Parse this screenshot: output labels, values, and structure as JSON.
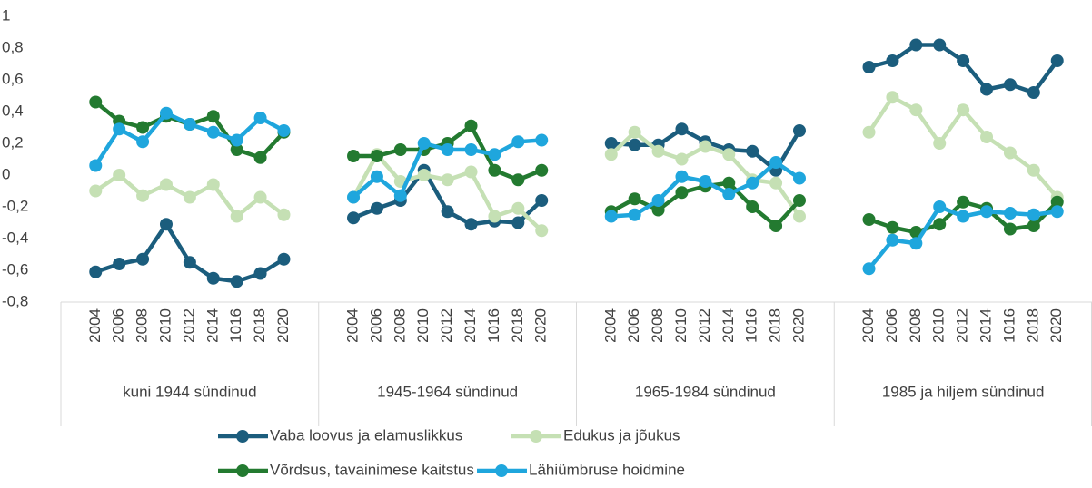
{
  "chart_data": {
    "type": "line",
    "categories": [
      "2004",
      "2006",
      "2008",
      "2010",
      "2012",
      "2014",
      "1016",
      "2018",
      "2020",
      "2004",
      "2006",
      "2008",
      "2010",
      "2012",
      "2014",
      "1016",
      "2018",
      "2020",
      "2004",
      "2006",
      "2008",
      "2010",
      "2012",
      "2014",
      "1016",
      "2018",
      "2020",
      "2004",
      "2006",
      "2008",
      "2010",
      "2012",
      "2014",
      "1016",
      "2018",
      "2020"
    ],
    "groups": [
      "kuni 1944 sündinud",
      "1945-1964 sündinud",
      "1965-1984 sündinud",
      "1985 ja hiljem sündinud"
    ],
    "ylim": [
      -0.8,
      1
    ],
    "yticks": [
      {
        "value": -0.8,
        "label": "-0,8"
      },
      {
        "value": -0.6,
        "label": "-0,6"
      },
      {
        "value": -0.4,
        "label": "-0,4"
      },
      {
        "value": -0.2,
        "label": "-0,2"
      },
      0,
      {
        "value": 0.2,
        "label": "0,2"
      },
      {
        "value": 0.4,
        "label": "0,4"
      },
      {
        "value": 0.6,
        "label": "0,6"
      },
      {
        "value": 0.8,
        "label": "0,8"
      },
      1
    ],
    "grid": false,
    "series": [
      {
        "name": "Vaba loovus ja elamuslikkus",
        "color": "#1b5d7d",
        "values": [
          -0.61,
          -0.56,
          -0.53,
          -0.31,
          -0.55,
          -0.65,
          -0.67,
          -0.62,
          -0.53,
          -0.27,
          -0.21,
          -0.16,
          0.03,
          -0.23,
          -0.31,
          -0.29,
          -0.3,
          -0.16,
          0.2,
          0.19,
          0.19,
          0.29,
          0.21,
          0.16,
          0.15,
          0.03,
          0.28,
          0.68,
          0.72,
          0.82,
          0.82,
          0.72,
          0.54,
          0.57,
          0.52,
          0.72
        ]
      },
      {
        "name": "Edukus ja jõukus",
        "color": "#c5e0b4",
        "values": [
          -0.1,
          0,
          -0.13,
          -0.06,
          -0.14,
          -0.06,
          -0.26,
          -0.14,
          -0.25,
          -0.14,
          0.13,
          -0.04,
          0,
          -0.03,
          0.02,
          -0.26,
          -0.21,
          -0.35,
          0.13,
          0.27,
          0.15,
          0.1,
          0.18,
          0.13,
          -0.03,
          -0.05,
          -0.26,
          0.27,
          0.49,
          0.41,
          0.2,
          0.41,
          0.24,
          0.14,
          0.03,
          -0.14
        ]
      },
      {
        "name": "Võrdsus, tavainimese kaitstus",
        "color": "#237a30",
        "values": [
          0.46,
          0.34,
          0.3,
          0.37,
          0.32,
          0.37,
          0.16,
          0.11,
          0.27,
          0.12,
          0.12,
          0.16,
          0.16,
          0.2,
          0.31,
          0.03,
          -0.03,
          0.03,
          -0.23,
          -0.15,
          -0.22,
          -0.11,
          -0.07,
          -0.05,
          -0.2,
          -0.32,
          -0.16,
          -0.28,
          -0.33,
          -0.36,
          -0.31,
          -0.17,
          -0.21,
          -0.34,
          -0.32,
          -0.17
        ]
      },
      {
        "name": "Lähiümbruse hoidmine",
        "color": "#1fa6dd",
        "values": [
          0.06,
          0.29,
          0.21,
          0.39,
          0.32,
          0.27,
          0.22,
          0.36,
          0.28,
          -0.14,
          -0.01,
          -0.13,
          0.2,
          0.16,
          0.16,
          0.13,
          0.21,
          0.22,
          -0.26,
          -0.25,
          -0.16,
          -0.01,
          -0.04,
          -0.12,
          -0.05,
          0.08,
          -0.02,
          -0.59,
          -0.41,
          -0.43,
          -0.2,
          -0.26,
          -0.23,
          -0.24,
          -0.25,
          -0.23
        ]
      }
    ],
    "legend": "bottom"
  }
}
